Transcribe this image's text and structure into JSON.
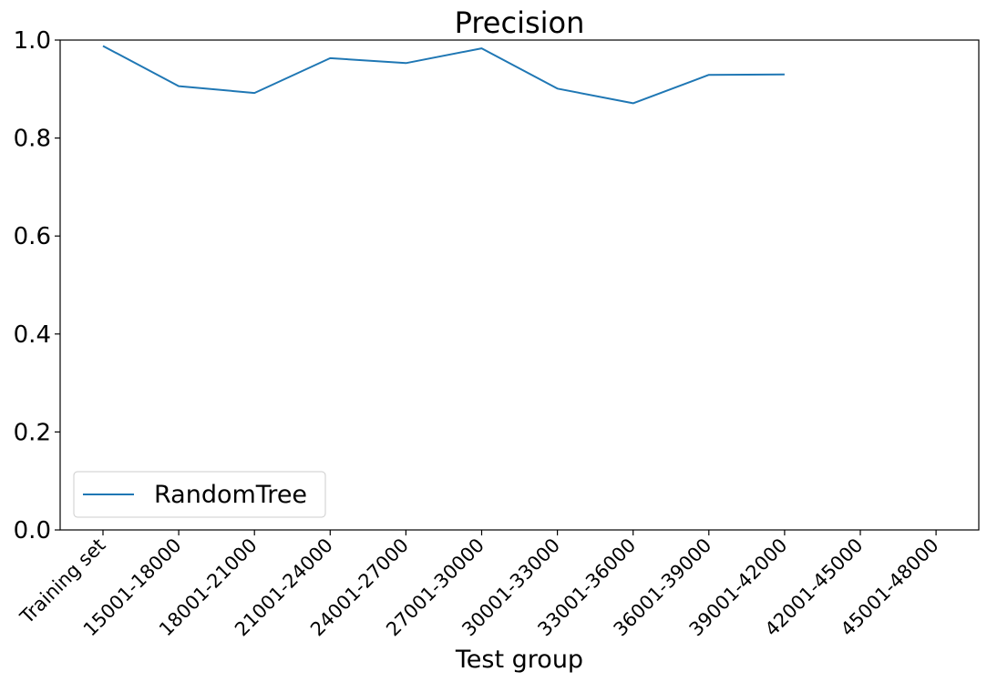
{
  "chart_data": {
    "type": "line",
    "title": "Precision",
    "xlabel": "Test group",
    "ylabel": "",
    "categories": [
      "Training set",
      "15001-18000",
      "18001-21000",
      "21001-24000",
      "24001-27000",
      "27001-30000",
      "30001-33000",
      "33001-36000",
      "36001-39000",
      "39001-42000",
      "42001-45000",
      "45001-48000"
    ],
    "series": [
      {
        "name": "RandomTree",
        "color": "#1f77b4",
        "values": [
          0.988,
          0.906,
          0.892,
          0.963,
          0.953,
          0.983,
          0.901,
          0.871,
          0.929,
          0.93,
          null,
          null
        ]
      }
    ],
    "ylim": [
      0,
      1.0
    ],
    "yticks": [
      "0.0",
      "0.2",
      "0.4",
      "0.6",
      "0.8",
      "1.0"
    ],
    "grid": false,
    "legend_position": "lower-left"
  }
}
